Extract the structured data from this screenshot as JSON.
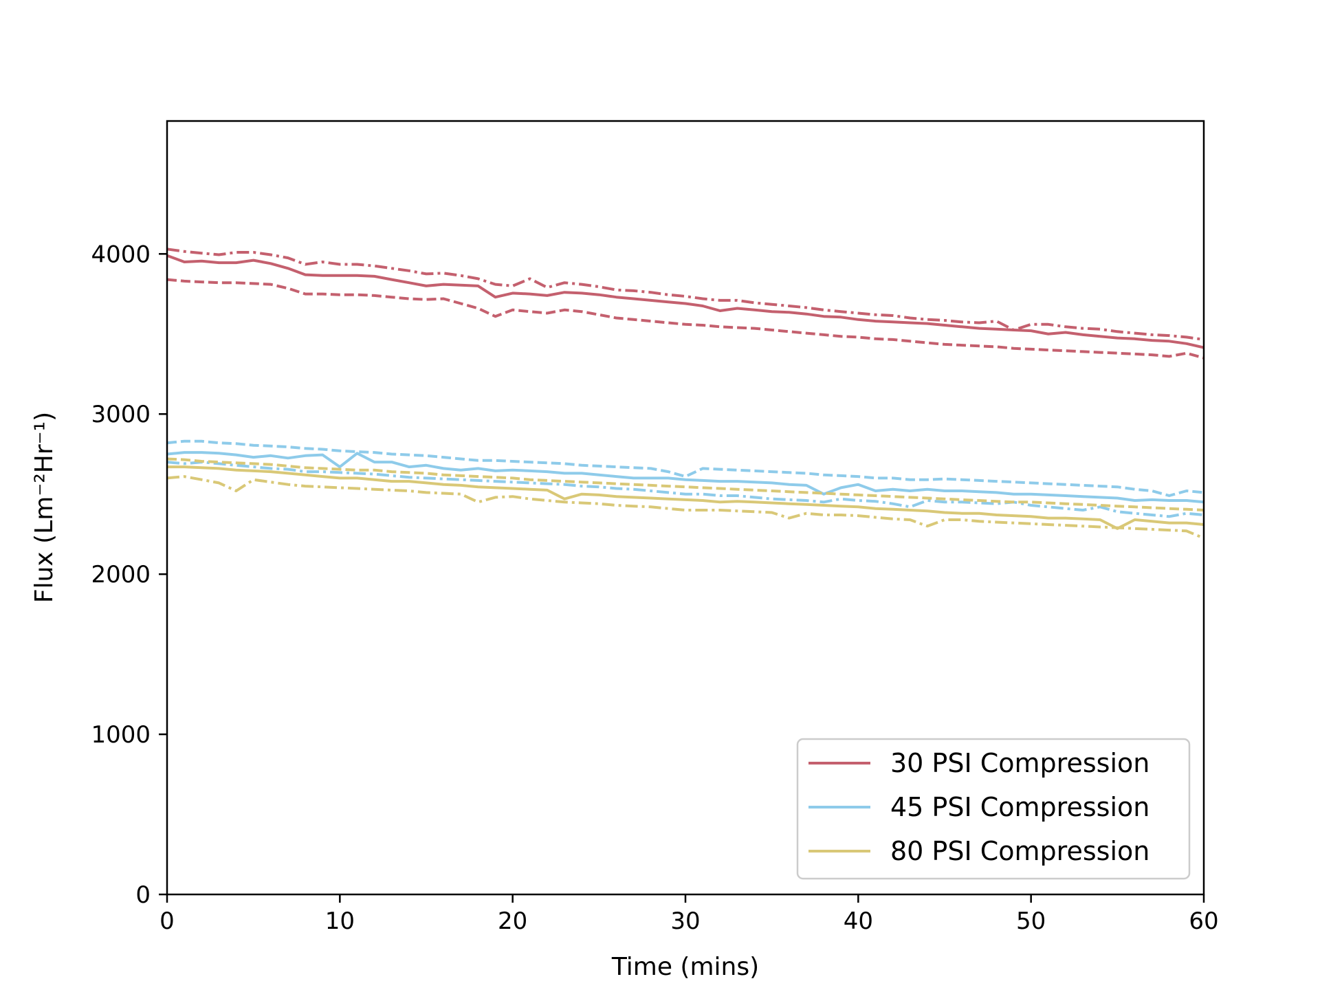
{
  "chart_data": {
    "type": "line",
    "xlabel": "Time (mins)",
    "ylabel": "Flux (Lm⁻²Hr⁻¹)",
    "xlim": [
      0,
      60
    ],
    "ylim": [
      0,
      4830
    ],
    "xticks": [
      "0",
      "10",
      "20",
      "30",
      "40",
      "50",
      "60"
    ],
    "yticks": [
      "0",
      "1000",
      "2000",
      "3000",
      "4000"
    ],
    "grid": false,
    "legend_position": "lower-right",
    "x": [
      0,
      1,
      2,
      3,
      4,
      5,
      6,
      7,
      8,
      9,
      10,
      11,
      12,
      13,
      14,
      15,
      16,
      17,
      18,
      19,
      20,
      21,
      22,
      23,
      24,
      25,
      26,
      27,
      28,
      29,
      30,
      31,
      32,
      33,
      34,
      35,
      36,
      37,
      38,
      39,
      40,
      41,
      42,
      43,
      44,
      45,
      46,
      47,
      48,
      49,
      50,
      51,
      52,
      53,
      54,
      55,
      56,
      57,
      58,
      59,
      60
    ],
    "groups": [
      {
        "name": "30 PSI Compression",
        "color": "#c4606e",
        "lines": [
          {
            "style": "solid",
            "values": [
              3990,
              3950,
              3955,
              3945,
              3945,
              3960,
              3940,
              3910,
              3870,
              3865,
              3865,
              3865,
              3860,
              3840,
              3820,
              3800,
              3810,
              3805,
              3800,
              3730,
              3755,
              3750,
              3740,
              3760,
              3755,
              3745,
              3730,
              3720,
              3710,
              3700,
              3690,
              3675,
              3645,
              3660,
              3650,
              3640,
              3635,
              3625,
              3610,
              3605,
              3590,
              3580,
              3575,
              3570,
              3565,
              3555,
              3545,
              3535,
              3530,
              3525,
              3520,
              3500,
              3510,
              3495,
              3485,
              3475,
              3470,
              3460,
              3455,
              3440,
              3415
            ]
          },
          {
            "style": "dashed",
            "values": [
              3840,
              3830,
              3825,
              3820,
              3820,
              3815,
              3810,
              3785,
              3750,
              3750,
              3745,
              3745,
              3740,
              3730,
              3720,
              3715,
              3720,
              3690,
              3660,
              3610,
              3650,
              3640,
              3630,
              3650,
              3640,
              3620,
              3600,
              3590,
              3580,
              3570,
              3560,
              3555,
              3545,
              3540,
              3535,
              3525,
              3515,
              3505,
              3495,
              3485,
              3480,
              3470,
              3465,
              3455,
              3445,
              3435,
              3430,
              3425,
              3420,
              3410,
              3405,
              3400,
              3395,
              3390,
              3385,
              3380,
              3375,
              3370,
              3360,
              3380,
              3350
            ]
          },
          {
            "style": "dashdot",
            "values": [
              4030,
              4015,
              4005,
              3995,
              4010,
              4010,
              3995,
              3975,
              3935,
              3950,
              3935,
              3935,
              3925,
              3910,
              3895,
              3875,
              3880,
              3865,
              3845,
              3810,
              3800,
              3845,
              3790,
              3820,
              3810,
              3795,
              3775,
              3770,
              3760,
              3745,
              3735,
              3720,
              3710,
              3710,
              3695,
              3685,
              3675,
              3665,
              3650,
              3640,
              3630,
              3620,
              3615,
              3600,
              3590,
              3585,
              3575,
              3570,
              3580,
              3525,
              3560,
              3560,
              3545,
              3535,
              3530,
              3515,
              3505,
              3495,
              3490,
              3480,
              3465
            ]
          }
        ]
      },
      {
        "name": "45 PSI Compression",
        "color": "#8ecbea",
        "lines": [
          {
            "style": "solid",
            "values": [
              2750,
              2760,
              2760,
              2755,
              2745,
              2730,
              2740,
              2725,
              2740,
              2745,
              2670,
              2755,
              2700,
              2700,
              2670,
              2680,
              2660,
              2650,
              2660,
              2645,
              2650,
              2645,
              2640,
              2630,
              2630,
              2620,
              2610,
              2600,
              2600,
              2600,
              2590,
              2585,
              2580,
              2580,
              2575,
              2570,
              2560,
              2555,
              2500,
              2540,
              2560,
              2520,
              2530,
              2520,
              2530,
              2520,
              2520,
              2515,
              2510,
              2500,
              2500,
              2495,
              2490,
              2485,
              2480,
              2475,
              2460,
              2465,
              2460,
              2460,
              2450
            ]
          },
          {
            "style": "dashed",
            "values": [
              2820,
              2830,
              2830,
              2820,
              2815,
              2805,
              2800,
              2795,
              2785,
              2780,
              2770,
              2765,
              2760,
              2750,
              2745,
              2740,
              2730,
              2720,
              2710,
              2710,
              2705,
              2700,
              2695,
              2690,
              2680,
              2675,
              2670,
              2665,
              2660,
              2640,
              2610,
              2660,
              2655,
              2650,
              2645,
              2640,
              2635,
              2630,
              2620,
              2615,
              2610,
              2600,
              2600,
              2590,
              2590,
              2595,
              2590,
              2585,
              2580,
              2575,
              2570,
              2565,
              2560,
              2555,
              2550,
              2545,
              2530,
              2520,
              2490,
              2520,
              2510
            ]
          },
          {
            "style": "dashdot",
            "values": [
              2700,
              2690,
              2700,
              2690,
              2680,
              2670,
              2660,
              2655,
              2640,
              2640,
              2635,
              2630,
              2625,
              2615,
              2605,
              2600,
              2595,
              2590,
              2585,
              2580,
              2575,
              2570,
              2565,
              2560,
              2550,
              2545,
              2535,
              2530,
              2520,
              2510,
              2500,
              2500,
              2490,
              2490,
              2480,
              2470,
              2465,
              2460,
              2450,
              2470,
              2460,
              2455,
              2440,
              2420,
              2460,
              2450,
              2450,
              2445,
              2440,
              2450,
              2430,
              2420,
              2410,
              2400,
              2420,
              2390,
              2380,
              2370,
              2360,
              2380,
              2370
            ]
          }
        ]
      },
      {
        "name": "80 PSI Compression",
        "color": "#d9c877",
        "lines": [
          {
            "style": "solid",
            "values": [
              2670,
              2670,
              2665,
              2660,
              2650,
              2645,
              2640,
              2630,
              2620,
              2610,
              2600,
              2600,
              2590,
              2580,
              2580,
              2570,
              2560,
              2555,
              2545,
              2540,
              2535,
              2530,
              2525,
              2470,
              2500,
              2495,
              2485,
              2480,
              2475,
              2470,
              2465,
              2460,
              2450,
              2455,
              2450,
              2445,
              2440,
              2435,
              2430,
              2425,
              2420,
              2410,
              2405,
              2400,
              2395,
              2385,
              2380,
              2380,
              2370,
              2365,
              2360,
              2350,
              2350,
              2345,
              2340,
              2285,
              2340,
              2330,
              2320,
              2320,
              2310
            ]
          },
          {
            "style": "dashed",
            "values": [
              2720,
              2715,
              2705,
              2700,
              2695,
              2690,
              2685,
              2675,
              2665,
              2660,
              2655,
              2650,
              2650,
              2640,
              2635,
              2630,
              2620,
              2615,
              2610,
              2605,
              2600,
              2590,
              2585,
              2580,
              2575,
              2570,
              2565,
              2560,
              2555,
              2550,
              2545,
              2540,
              2535,
              2530,
              2525,
              2520,
              2515,
              2510,
              2505,
              2500,
              2495,
              2490,
              2485,
              2480,
              2475,
              2470,
              2465,
              2460,
              2455,
              2450,
              2450,
              2445,
              2440,
              2435,
              2430,
              2425,
              2420,
              2415,
              2410,
              2405,
              2400
            ]
          },
          {
            "style": "dashdot",
            "values": [
              2600,
              2610,
              2590,
              2570,
              2520,
              2590,
              2575,
              2560,
              2550,
              2545,
              2540,
              2535,
              2530,
              2525,
              2520,
              2510,
              2505,
              2500,
              2450,
              2480,
              2485,
              2470,
              2460,
              2450,
              2445,
              2440,
              2430,
              2425,
              2420,
              2410,
              2400,
              2400,
              2400,
              2395,
              2390,
              2385,
              2350,
              2380,
              2370,
              2370,
              2365,
              2355,
              2345,
              2340,
              2300,
              2340,
              2340,
              2330,
              2325,
              2320,
              2315,
              2310,
              2305,
              2300,
              2295,
              2290,
              2285,
              2280,
              2275,
              2270,
              2225
            ]
          }
        ]
      }
    ]
  }
}
